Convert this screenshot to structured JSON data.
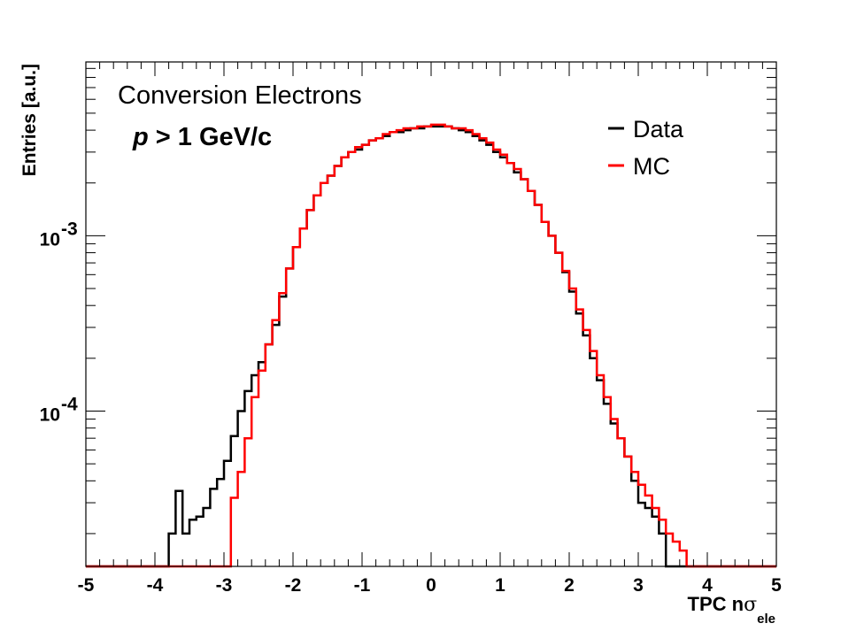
{
  "chart_data": {
    "type": "line",
    "drawstyle": "steps",
    "annotations": [
      "Conversion Electrons",
      "p",
      " > 1 GeV/c"
    ],
    "xlabel": "TPC n",
    "xlabel_symbol": "σ",
    "xlabel_sub": "ele",
    "ylabel": "Entries [a.u.]",
    "xlim": [
      -5,
      5
    ],
    "ylim": [
      1.3e-05,
      0.0098
    ],
    "yscale": "log",
    "grid": false,
    "legend_position": "top-right",
    "x_ticks": [
      "-5",
      "-4",
      "-3",
      "-2",
      "-1",
      "0",
      "1",
      "2",
      "3",
      "4",
      "5"
    ],
    "y_ticks": [
      {
        "base": "10",
        "exp": "-3",
        "value": 0.001
      },
      {
        "base": "10",
        "exp": "-4",
        "value": 0.0001
      }
    ],
    "series": [
      {
        "name": "Data",
        "color": "#000000",
        "points": [
          [
            -5.0,
            1.3e-05
          ],
          [
            -3.8,
            1.3e-05
          ],
          [
            -3.8,
            2e-05
          ],
          [
            -3.7,
            3.5e-05
          ],
          [
            -3.6,
            2e-05
          ],
          [
            -3.5,
            2.4e-05
          ],
          [
            -3.4,
            2.5e-05
          ],
          [
            -3.3,
            2.8e-05
          ],
          [
            -3.2,
            3.6e-05
          ],
          [
            -3.1,
            4.1e-05
          ],
          [
            -3.0,
            5.2e-05
          ],
          [
            -2.9,
            7.2e-05
          ],
          [
            -2.8,
            0.0001
          ],
          [
            -2.7,
            0.00013
          ],
          [
            -2.6,
            0.00016
          ],
          [
            -2.5,
            0.00019
          ],
          [
            -2.4,
            0.00024
          ],
          [
            -2.3,
            0.00031
          ],
          [
            -2.2,
            0.00045
          ],
          [
            -2.1,
            0.00065
          ],
          [
            -2.0,
            0.00086
          ],
          [
            -1.9,
            0.0011
          ],
          [
            -1.8,
            0.0014
          ],
          [
            -1.7,
            0.0017
          ],
          [
            -1.6,
            0.002
          ],
          [
            -1.5,
            0.0022
          ],
          [
            -1.4,
            0.0025
          ],
          [
            -1.3,
            0.0028
          ],
          [
            -1.2,
            0.003
          ],
          [
            -1.1,
            0.0031
          ],
          [
            -1.0,
            0.0033
          ],
          [
            -0.9,
            0.0035
          ],
          [
            -0.8,
            0.0036
          ],
          [
            -0.7,
            0.0037
          ],
          [
            -0.6,
            0.0039
          ],
          [
            -0.5,
            0.0039
          ],
          [
            -0.4,
            0.004
          ],
          [
            -0.3,
            0.0041
          ],
          [
            -0.2,
            0.0041
          ],
          [
            -0.1,
            0.0042
          ],
          [
            0.0,
            0.0042
          ],
          [
            0.1,
            0.0042
          ],
          [
            0.2,
            0.0042
          ],
          [
            0.3,
            0.0041
          ],
          [
            0.4,
            0.004
          ],
          [
            0.5,
            0.0039
          ],
          [
            0.6,
            0.0037
          ],
          [
            0.7,
            0.0035
          ],
          [
            0.8,
            0.0033
          ],
          [
            0.9,
            0.003
          ],
          [
            1.0,
            0.0028
          ],
          [
            1.1,
            0.0026
          ],
          [
            1.2,
            0.0023
          ],
          [
            1.3,
            0.0021
          ],
          [
            1.4,
            0.0018
          ],
          [
            1.5,
            0.0015
          ],
          [
            1.6,
            0.0012
          ],
          [
            1.7,
            0.001
          ],
          [
            1.8,
            0.0008
          ],
          [
            1.9,
            0.00062
          ],
          [
            2.0,
            0.00048
          ],
          [
            2.1,
            0.00036
          ],
          [
            2.2,
            0.00027
          ],
          [
            2.3,
            0.0002
          ],
          [
            2.4,
            0.00015
          ],
          [
            2.5,
            0.00011
          ],
          [
            2.6,
            8.5e-05
          ],
          [
            2.7,
            7e-05
          ],
          [
            2.8,
            5.5e-05
          ],
          [
            2.9,
            4e-05
          ],
          [
            3.0,
            3e-05
          ],
          [
            3.1,
            2.8e-05
          ],
          [
            3.2,
            2.5e-05
          ],
          [
            3.3,
            2e-05
          ],
          [
            3.4,
            1.3e-05
          ],
          [
            5.0,
            1.3e-05
          ]
        ]
      },
      {
        "name": "MC",
        "color": "#ff0000",
        "points": [
          [
            -5.0,
            1.3e-05
          ],
          [
            -2.9,
            1.3e-05
          ],
          [
            -2.9,
            3.2e-05
          ],
          [
            -2.8,
            4.5e-05
          ],
          [
            -2.7,
            7e-05
          ],
          [
            -2.6,
            0.00012
          ],
          [
            -2.5,
            0.00017
          ],
          [
            -2.4,
            0.00024
          ],
          [
            -2.3,
            0.00033
          ],
          [
            -2.2,
            0.00047
          ],
          [
            -2.1,
            0.00065
          ],
          [
            -2.0,
            0.00086
          ],
          [
            -1.9,
            0.0011
          ],
          [
            -1.8,
            0.0014
          ],
          [
            -1.7,
            0.0017
          ],
          [
            -1.6,
            0.002
          ],
          [
            -1.5,
            0.0022
          ],
          [
            -1.4,
            0.0025
          ],
          [
            -1.3,
            0.0028
          ],
          [
            -1.2,
            0.003
          ],
          [
            -1.1,
            0.0032
          ],
          [
            -1.0,
            0.0033
          ],
          [
            -0.9,
            0.0035
          ],
          [
            -0.8,
            0.0036
          ],
          [
            -0.7,
            0.0038
          ],
          [
            -0.6,
            0.0039
          ],
          [
            -0.5,
            0.004
          ],
          [
            -0.4,
            0.0041
          ],
          [
            -0.3,
            0.0041
          ],
          [
            -0.2,
            0.0042
          ],
          [
            -0.1,
            0.0042
          ],
          [
            0.0,
            0.0043
          ],
          [
            0.1,
            0.0043
          ],
          [
            0.2,
            0.0042
          ],
          [
            0.3,
            0.0041
          ],
          [
            0.4,
            0.0041
          ],
          [
            0.5,
            0.004
          ],
          [
            0.6,
            0.0038
          ],
          [
            0.7,
            0.0036
          ],
          [
            0.8,
            0.0034
          ],
          [
            0.9,
            0.0031
          ],
          [
            1.0,
            0.0029
          ],
          [
            1.1,
            0.0026
          ],
          [
            1.2,
            0.0024
          ],
          [
            1.3,
            0.0021
          ],
          [
            1.4,
            0.0018
          ],
          [
            1.5,
            0.0015
          ],
          [
            1.6,
            0.0012
          ],
          [
            1.7,
            0.001
          ],
          [
            1.8,
            0.0008
          ],
          [
            1.9,
            0.00063
          ],
          [
            2.0,
            0.0005
          ],
          [
            2.1,
            0.00038
          ],
          [
            2.2,
            0.00029
          ],
          [
            2.3,
            0.00022
          ],
          [
            2.4,
            0.00016
          ],
          [
            2.5,
            0.00012
          ],
          [
            2.6,
            9e-05
          ],
          [
            2.7,
            7e-05
          ],
          [
            2.8,
            5.5e-05
          ],
          [
            2.9,
            4.5e-05
          ],
          [
            3.0,
            3.8e-05
          ],
          [
            3.1,
            3.3e-05
          ],
          [
            3.2,
            2.8e-05
          ],
          [
            3.3,
            2.4e-05
          ],
          [
            3.4,
            2e-05
          ],
          [
            3.5,
            1.8e-05
          ],
          [
            3.6,
            1.6e-05
          ],
          [
            3.7,
            1.3e-05
          ],
          [
            5.0,
            1.3e-05
          ]
        ]
      }
    ]
  }
}
